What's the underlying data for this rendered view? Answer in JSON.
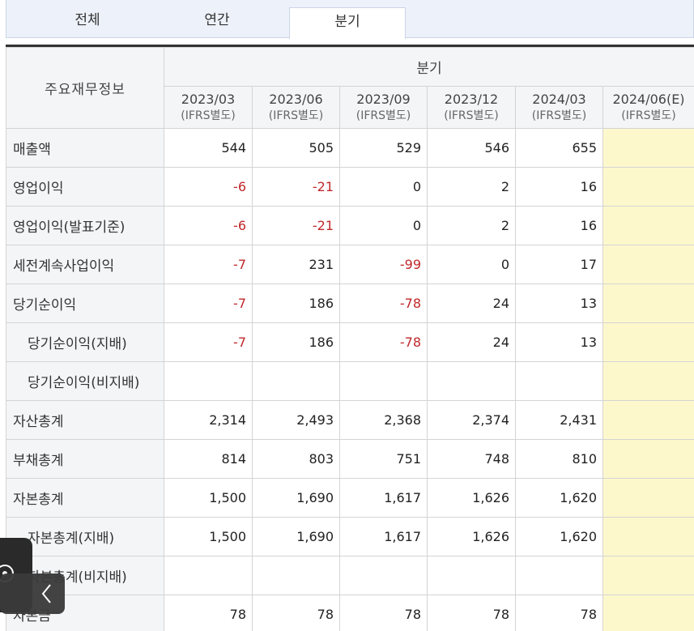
{
  "tabs": [
    {
      "label": "전체",
      "active": false
    },
    {
      "label": "연간",
      "active": false
    },
    {
      "label": "분기",
      "active": true
    }
  ],
  "table": {
    "row_header": "주요재무정보",
    "group_header": "분기",
    "periods": [
      {
        "date": "2023/03",
        "basis": "(IFRS별도)"
      },
      {
        "date": "2023/06",
        "basis": "(IFRS별도)"
      },
      {
        "date": "2023/09",
        "basis": "(IFRS별도)"
      },
      {
        "date": "2023/12",
        "basis": "(IFRS별도)"
      },
      {
        "date": "2024/03",
        "basis": "(IFRS별도)"
      },
      {
        "date": "2024/06(E)",
        "basis": "(IFRS별도)"
      }
    ],
    "rows": [
      {
        "label": "매출액",
        "indent": false,
        "values": [
          "544",
          "505",
          "529",
          "546",
          "655",
          ""
        ]
      },
      {
        "label": "영업이익",
        "indent": false,
        "values": [
          "-6",
          "-21",
          "0",
          "2",
          "16",
          ""
        ]
      },
      {
        "label": "영업이익(발표기준)",
        "indent": false,
        "values": [
          "-6",
          "-21",
          "0",
          "2",
          "16",
          ""
        ]
      },
      {
        "label": "세전계속사업이익",
        "indent": false,
        "values": [
          "-7",
          "231",
          "-99",
          "0",
          "17",
          ""
        ]
      },
      {
        "label": "당기순이익",
        "indent": false,
        "values": [
          "-7",
          "186",
          "-78",
          "24",
          "13",
          ""
        ]
      },
      {
        "label": "당기순이익(지배)",
        "indent": true,
        "values": [
          "-7",
          "186",
          "-78",
          "24",
          "13",
          ""
        ]
      },
      {
        "label": "당기순이익(비지배)",
        "indent": true,
        "values": [
          "",
          "",
          "",
          "",
          "",
          ""
        ]
      },
      {
        "label": "자산총계",
        "indent": false,
        "values": [
          "2,314",
          "2,493",
          "2,368",
          "2,374",
          "2,431",
          ""
        ]
      },
      {
        "label": "부채총계",
        "indent": false,
        "values": [
          "814",
          "803",
          "751",
          "748",
          "810",
          ""
        ]
      },
      {
        "label": "자본총계",
        "indent": false,
        "values": [
          "1,500",
          "1,690",
          "1,617",
          "1,626",
          "1,620",
          ""
        ]
      },
      {
        "label": "자본총계(지배)",
        "indent": true,
        "values": [
          "1,500",
          "1,690",
          "1,617",
          "1,626",
          "1,620",
          ""
        ]
      },
      {
        "label": "자본총계(비지배)",
        "indent": true,
        "values": [
          "",
          "",
          "",
          "",
          "",
          ""
        ]
      },
      {
        "label": "자본금",
        "indent": false,
        "values": [
          "78",
          "78",
          "78",
          "78",
          "78",
          ""
        ]
      }
    ]
  },
  "colors": {
    "negative": "#c0282b",
    "estimate_bg": "#fdf8cc",
    "header_bg": "#f4f5f7"
  },
  "overlay": {
    "icon": "compass-icon",
    "back_icon": "chevron-left-icon"
  }
}
